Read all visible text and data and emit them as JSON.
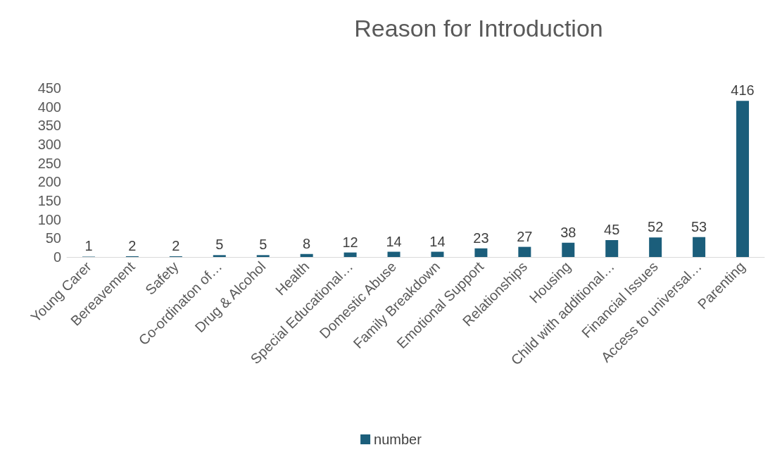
{
  "chart_data": {
    "type": "bar",
    "title": "Reason for Introduction",
    "categories": [
      "Young Carer",
      "Bereavement",
      "Safety",
      "Co-ordinaton of…",
      "Drug & Alcohol",
      "Health",
      "Special Educational…",
      "Domestic Abuse",
      "Family Breakdown",
      "Emotional Support",
      "Relationships",
      "Housing",
      "Child with additional…",
      "Financial Issues",
      "Access to universal…",
      "Parenting"
    ],
    "series": [
      {
        "name": "number",
        "color": "#1b5e7b",
        "values": [
          1,
          2,
          2,
          5,
          5,
          8,
          12,
          14,
          14,
          23,
          27,
          38,
          45,
          52,
          53,
          416
        ]
      }
    ],
    "ylim": [
      0,
      450
    ],
    "yticks": [
      0,
      50,
      100,
      150,
      200,
      250,
      300,
      350,
      400,
      450
    ],
    "grid": false,
    "legend": "bottom",
    "data_labels": true
  }
}
